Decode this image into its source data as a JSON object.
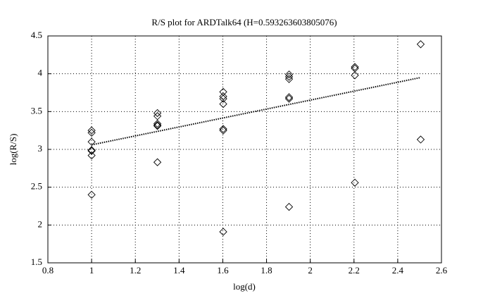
{
  "chart_data": {
    "type": "scatter",
    "title": "R/S plot for ARDTalk64 (H=0.593263603805076)",
    "x_label": "log(d)",
    "y_label": "log(R/S)",
    "x": [
      1.0,
      1.0,
      1.0,
      1.0,
      1.0,
      1.0,
      1.0,
      1.301,
      1.301,
      1.301,
      1.301,
      1.301,
      1.301,
      1.602,
      1.602,
      1.602,
      1.602,
      1.602,
      1.602,
      1.602,
      1.903,
      1.903,
      1.903,
      1.903,
      1.903,
      1.903,
      2.204,
      2.204,
      2.204,
      2.204,
      2.505,
      2.505
    ],
    "y": [
      3.25,
      3.22,
      3.1,
      2.99,
      2.98,
      2.92,
      2.4,
      3.48,
      3.44,
      3.34,
      3.32,
      3.31,
      2.83,
      3.76,
      3.7,
      3.67,
      3.6,
      3.27,
      3.25,
      1.91,
      3.99,
      3.96,
      3.93,
      3.69,
      3.67,
      2.24,
      4.09,
      4.07,
      3.98,
      2.56,
      4.39,
      3.13
    ],
    "marker_color": "#000000",
    "fit": {
      "x": [
        1.0,
        2.505
      ],
      "y": [
        3.06,
        3.95
      ],
      "color": "#000000"
    },
    "xlim": [
      0.8,
      2.6
    ],
    "xticks": [
      0.8,
      1,
      1.2,
      1.4,
      1.6,
      1.8,
      2,
      2.2,
      2.4,
      2.6
    ],
    "ylim": [
      1.5,
      4.5
    ],
    "yticks": [
      1.5,
      2,
      2.5,
      3,
      3.5,
      4,
      4.5
    ],
    "grid": true
  }
}
